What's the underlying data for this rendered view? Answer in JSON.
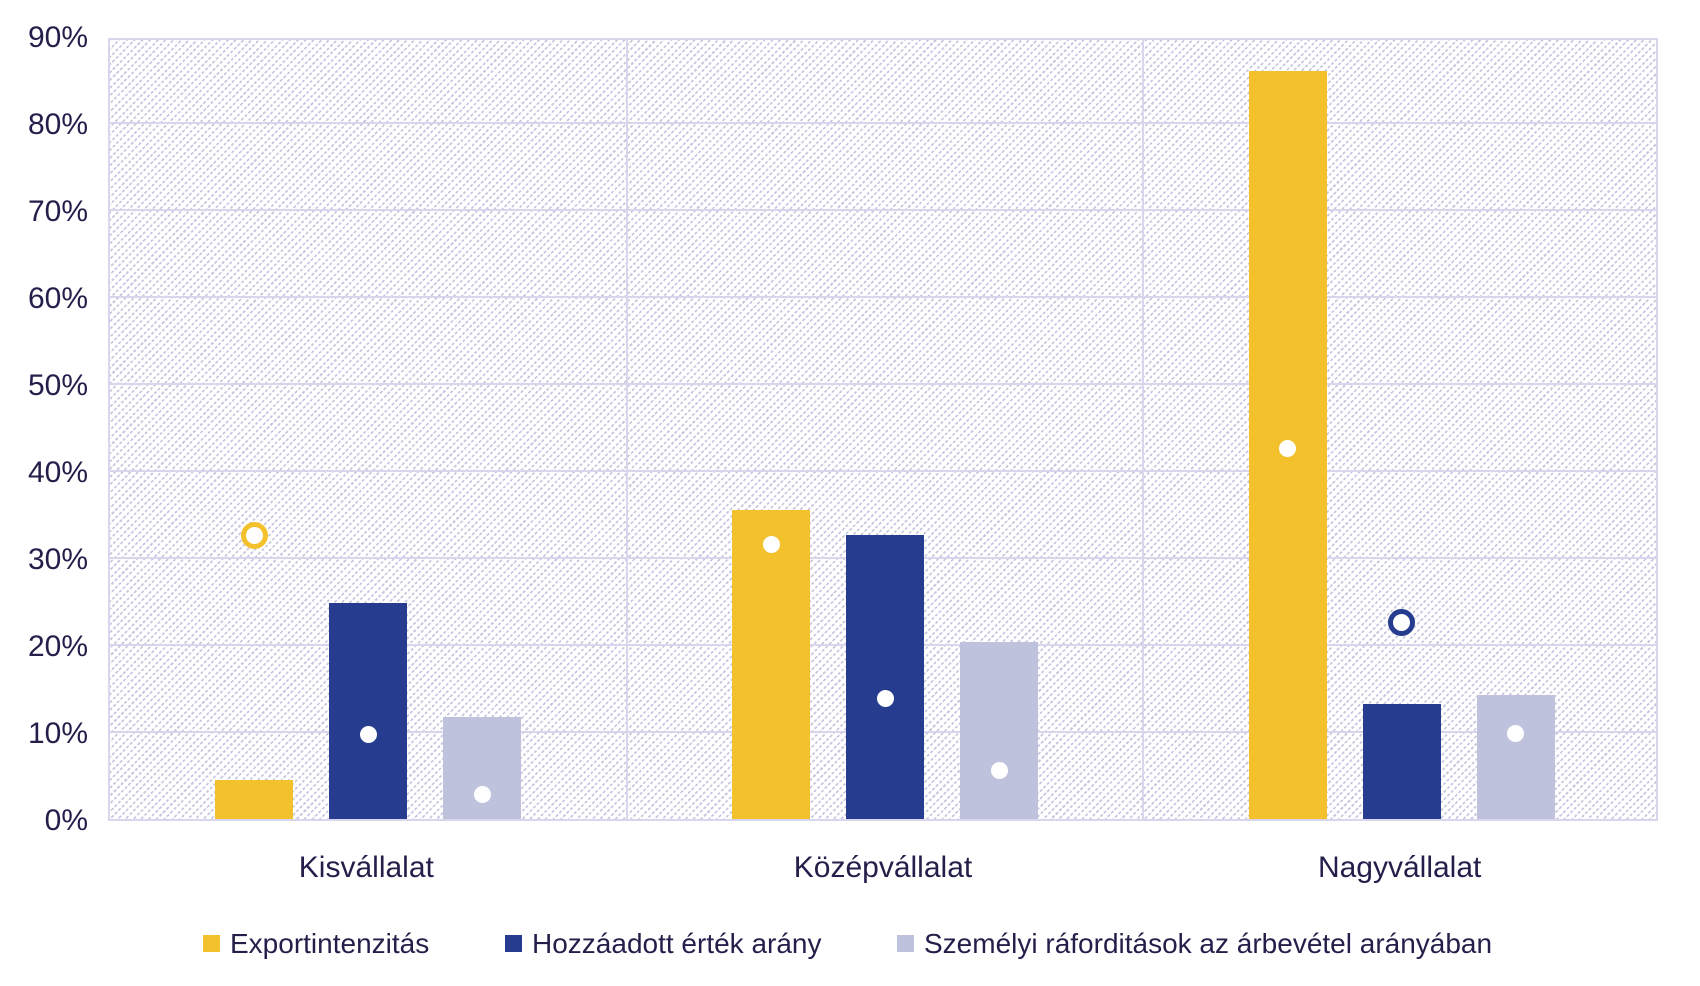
{
  "chart_data": {
    "type": "bar",
    "title": "",
    "categories": [
      "Kisvállalat",
      "Középvállalat",
      "Nagyvállalat"
    ],
    "series": [
      {
        "name": "Exportintenzitás",
        "color": "#f3c12c",
        "values": [
          4.5,
          35.5,
          86
        ],
        "marker_values": [
          33,
          32,
          43
        ]
      },
      {
        "name": "Hozzáadott érték arány",
        "color": "#263c8f",
        "values": [
          24.8,
          32.7,
          13.2
        ],
        "marker_values": [
          10.2,
          14.3,
          23
        ]
      },
      {
        "name": "Személyi ráforditások az árbevétel arányában",
        "color": "#bec2dc",
        "values": [
          11.7,
          20.4,
          14.3
        ],
        "marker_values": [
          3.3,
          6,
          10.3
        ]
      }
    ],
    "marker_style": "circle with white fill and series-color outline",
    "xlabel": "",
    "ylabel": "",
    "ylim": [
      0,
      90
    ],
    "grid": "horizontal gridlines every 10%, vertical separators between categories, hatched plot background",
    "legend_position": "bottom",
    "y_ticks": [
      {
        "v": 0,
        "label": "0%"
      },
      {
        "v": 10,
        "label": "10%"
      },
      {
        "v": 20,
        "label": "20%"
      },
      {
        "v": 30,
        "label": "30%"
      },
      {
        "v": 40,
        "label": "40%"
      },
      {
        "v": 50,
        "label": "50%"
      },
      {
        "v": 60,
        "label": "60%"
      },
      {
        "v": 70,
        "label": "70%"
      },
      {
        "v": 80,
        "label": "80%"
      },
      {
        "v": 90,
        "label": "90%"
      }
    ]
  }
}
